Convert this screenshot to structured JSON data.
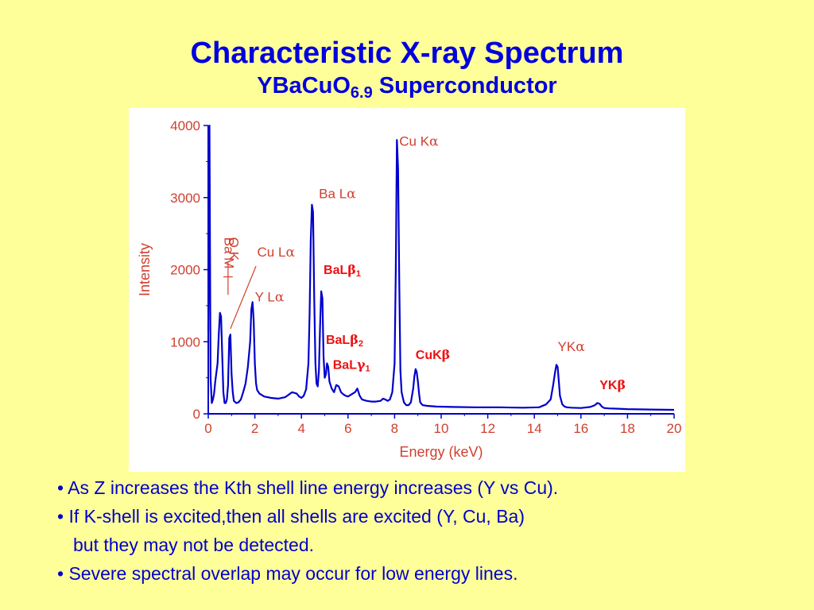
{
  "title": "Characteristic X-ray Spectrum",
  "subtitle": {
    "main": "YBaCuO",
    "sub": "6.9",
    "suffix": "Superconductor"
  },
  "colors": {
    "background": "#ffff99",
    "title": "#0000dd",
    "plot_line": "#0000cc",
    "axis_text": "#d04030",
    "red_label": "#ee1111",
    "bullet_text": "#0000cc"
  },
  "chart_data": {
    "type": "line",
    "xlabel": "Energy (keV)",
    "ylabel": "Intensity",
    "xlim": [
      0,
      20
    ],
    "ylim": [
      0,
      4000
    ],
    "xticks": [
      "0",
      "2",
      "4",
      "6",
      "8",
      "10",
      "12",
      "14",
      "16",
      "18",
      "20"
    ],
    "yticks": [
      "0",
      "1000",
      "2000",
      "3000",
      "4000"
    ],
    "grid": false,
    "series": [
      {
        "x": [
          0.0,
          0.05,
          0.1,
          0.15,
          0.2,
          0.25,
          0.3,
          0.4,
          0.45,
          0.5,
          0.55,
          0.6,
          0.65,
          0.7,
          0.75,
          0.8,
          0.85,
          0.9,
          0.95,
          1.0,
          1.05,
          1.1,
          1.2,
          1.3,
          1.4,
          1.5,
          1.6,
          1.7,
          1.8,
          1.85,
          1.9,
          1.95,
          2.0,
          2.05,
          2.1,
          2.2,
          2.4,
          2.7,
          3.0,
          3.3,
          3.6,
          3.8,
          3.9,
          4.0,
          4.1,
          4.2,
          4.3,
          4.35,
          4.4,
          4.45,
          4.5,
          4.55,
          4.6,
          4.65,
          4.7,
          4.75,
          4.8,
          4.85,
          4.9,
          4.95,
          5.0,
          5.05,
          5.1,
          5.15,
          5.2,
          5.25,
          5.3,
          5.4,
          5.5,
          5.6,
          5.7,
          5.8,
          5.9,
          6.0,
          6.1,
          6.2,
          6.3,
          6.4,
          6.5,
          6.6,
          6.8,
          7.0,
          7.2,
          7.4,
          7.5,
          7.6,
          7.7,
          7.8,
          7.9,
          8.0,
          8.05,
          8.1,
          8.15,
          8.2,
          8.25,
          8.3,
          8.4,
          8.5,
          8.6,
          8.7,
          8.8,
          8.85,
          8.9,
          8.95,
          9.0,
          9.05,
          9.1,
          9.2,
          9.4,
          9.8,
          10.5,
          11.5,
          12.5,
          13.5,
          14.2,
          14.5,
          14.7,
          14.8,
          14.9,
          14.95,
          15.0,
          15.05,
          15.1,
          15.2,
          15.3,
          15.4,
          15.6,
          16.0,
          16.4,
          16.6,
          16.7,
          16.8,
          16.9,
          17.0,
          17.2,
          17.6,
          18.0,
          19.0,
          20.0
        ],
        "y": [
          1150,
          4000,
          500,
          150,
          200,
          280,
          450,
          700,
          1100,
          1400,
          1350,
          800,
          300,
          150,
          150,
          200,
          400,
          1050,
          1100,
          550,
          300,
          180,
          150,
          160,
          200,
          300,
          420,
          650,
          1000,
          1450,
          1550,
          1300,
          700,
          420,
          330,
          280,
          240,
          220,
          210,
          230,
          300,
          280,
          240,
          220,
          250,
          340,
          700,
          1400,
          2400,
          2900,
          2800,
          1600,
          700,
          420,
          380,
          600,
          1200,
          1700,
          1600,
          800,
          500,
          550,
          700,
          650,
          450,
          400,
          350,
          300,
          400,
          380,
          300,
          270,
          250,
          240,
          260,
          280,
          300,
          350,
          250,
          200,
          180,
          170,
          170,
          180,
          210,
          200,
          180,
          200,
          300,
          700,
          2000,
          3800,
          3400,
          1800,
          600,
          300,
          160,
          120,
          120,
          160,
          350,
          520,
          620,
          580,
          450,
          280,
          160,
          120,
          110,
          100,
          95,
          90,
          90,
          85,
          90,
          130,
          200,
          380,
          600,
          680,
          650,
          450,
          250,
          130,
          100,
          90,
          85,
          80,
          95,
          120,
          150,
          140,
          100,
          80,
          75,
          70,
          65,
          60,
          55
        ]
      }
    ],
    "annotations": [
      {
        "text": "Ba M",
        "x": 0.7,
        "y": 2450,
        "style": "axis"
      },
      {
        "text": "O K",
        "x": 0.9,
        "y": 2450,
        "style": "axis"
      },
      {
        "text": "Cu L",
        "x": 2.1,
        "y": 2180,
        "style": "axis",
        "greek": "α"
      },
      {
        "text": "Y L",
        "x": 2.0,
        "y": 1560,
        "style": "axis",
        "greek": "α"
      },
      {
        "text": "Ba L",
        "x": 4.75,
        "y": 2990,
        "style": "axis",
        "greek": "α"
      },
      {
        "text": "BaL",
        "x": 4.95,
        "y": 1940,
        "style": "red",
        "greek": "β",
        "suffix": "1"
      },
      {
        "text": "BaL",
        "x": 5.05,
        "y": 970,
        "style": "red",
        "greek": "β",
        "suffix": "2"
      },
      {
        "text": "BaL",
        "x": 5.35,
        "y": 620,
        "style": "red",
        "greek": "γ",
        "suffix": "1"
      },
      {
        "text": "Cu K",
        "x": 8.2,
        "y": 3720,
        "style": "axis",
        "greek": "α"
      },
      {
        "text": "CuK",
        "x": 8.9,
        "y": 760,
        "style": "red",
        "greek": "β"
      },
      {
        "text": "YK",
        "x": 15.0,
        "y": 870,
        "style": "axis",
        "greek": "α"
      },
      {
        "text": "YK",
        "x": 16.8,
        "y": 340,
        "style": "red",
        "greek": "β"
      }
    ]
  },
  "bullets": [
    "• As Z increases the Kth shell line energy increases (Y vs Cu).",
    "• If K-shell is excited,then all shells are excited (Y, Cu, Ba)",
    "  but they may not be detected.",
    "• Severe spectral overlap may occur for low energy lines."
  ]
}
